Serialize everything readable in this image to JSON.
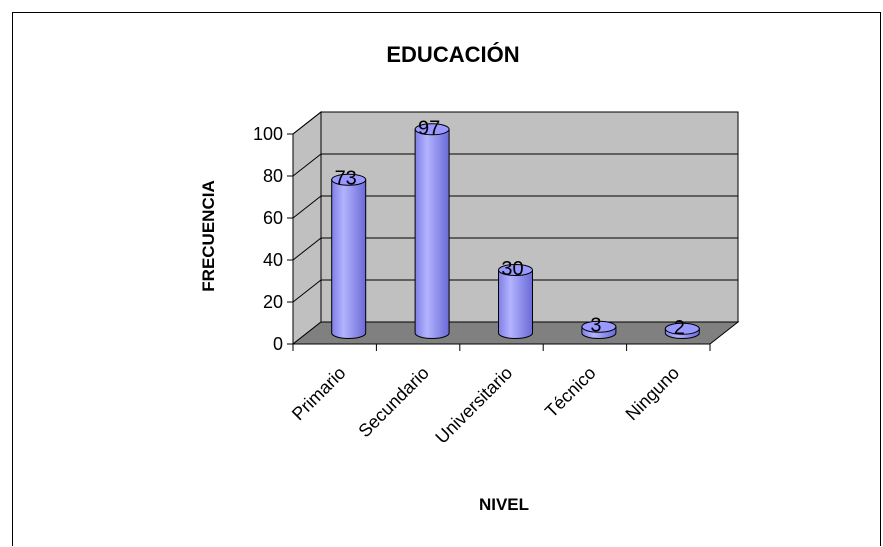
{
  "chart_data": {
    "type": "bar",
    "title": "EDUCACIÓN",
    "xlabel": "NIVEL",
    "ylabel": "FRECUENCIA",
    "categories": [
      "Primario",
      "Secundario",
      "Universitario",
      "Técnico",
      "Ninguno"
    ],
    "values": [
      73,
      97,
      30,
      3,
      2
    ],
    "data_labels": [
      "73",
      "97",
      "30",
      "3",
      "2"
    ],
    "yticks": [
      "0",
      "20",
      "40",
      "60",
      "80",
      "100"
    ],
    "ylim": [
      0,
      100
    ],
    "grid": true,
    "legend": "none",
    "style": "3d-cylinder",
    "colors": {
      "bar": "#9999ff",
      "wall": "#c0c0c0",
      "floor": "#808080"
    }
  }
}
